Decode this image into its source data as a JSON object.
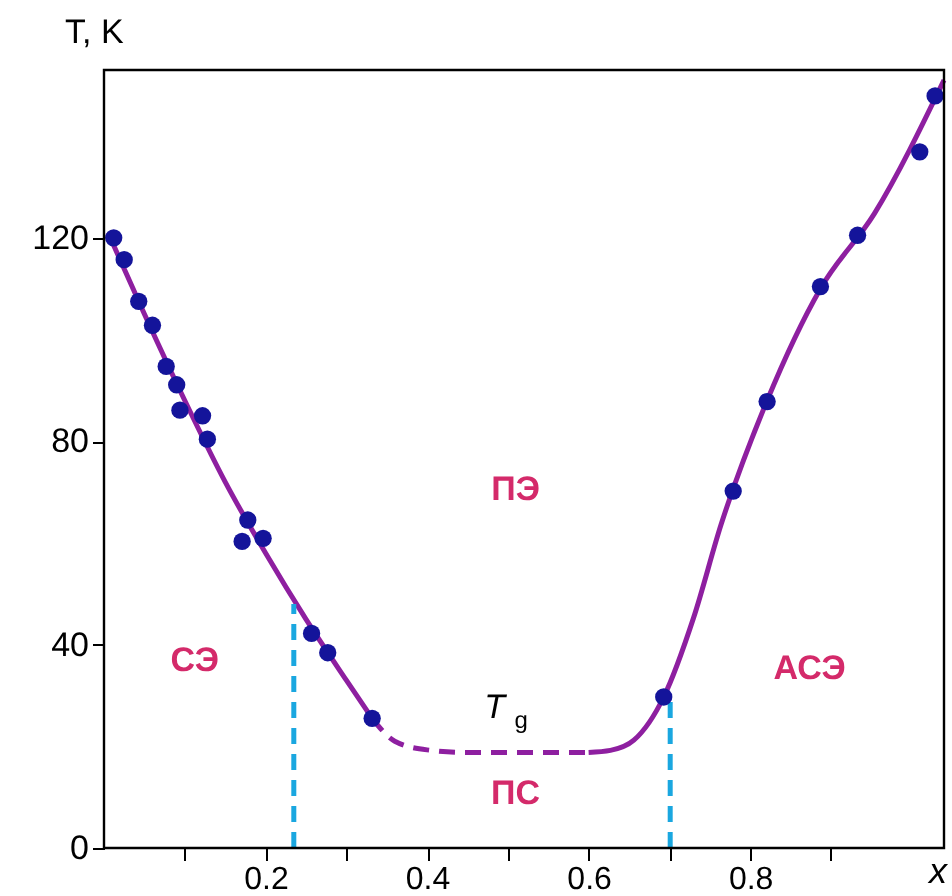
{
  "chart_data": {
    "type": "scatter",
    "xlabel": "x",
    "ylabel": "T, K",
    "xlim": [
      0,
      1.04
    ],
    "ylim": [
      0,
      153
    ],
    "xticks": [
      {
        "value": 0.1,
        "label": null
      },
      0.2,
      {
        "value": 0.3,
        "label": null
      },
      0.4,
      {
        "value": 0.5,
        "label": null
      },
      0.6,
      {
        "value": 0.7,
        "label": null
      },
      0.8,
      {
        "value": 0.9,
        "label": null
      }
    ],
    "yticks": [
      0,
      40,
      80,
      120
    ],
    "grid": false,
    "series": [
      {
        "type": "line",
        "color": "#8e1fa0",
        "line_style": "solid",
        "marker": "none",
        "x": [
          0.005,
          0.05,
          0.1,
          0.15,
          0.2,
          0.25,
          0.3,
          0.332
        ],
        "values": [
          121,
          105,
          88,
          72,
          58,
          45,
          33,
          25.5
        ]
      },
      {
        "type": "line",
        "color": "#8e1fa0",
        "line_style": "dashed",
        "marker": "none",
        "x": [
          0.332,
          0.36,
          0.4,
          0.45,
          0.5,
          0.55,
          0.6
        ],
        "values": [
          25.5,
          21,
          19.3,
          18.8,
          18.8,
          18.8,
          18.8
        ]
      },
      {
        "type": "line",
        "color": "#8e1fa0",
        "line_style": "solid",
        "marker": "none",
        "x": [
          0.6,
          0.627,
          0.656,
          0.693,
          0.73,
          0.764,
          0.821,
          0.887,
          0.954,
          1.04
        ],
        "values": [
          18.8,
          19.2,
          21.2,
          29.7,
          45.3,
          63.6,
          88,
          110,
          124.8,
          151
        ]
      },
      {
        "type": "line",
        "color": "#1aa7e0",
        "line_style": "dashed",
        "marker": "none",
        "x": [
          0.235,
          0.235
        ],
        "values": [
          0,
          48
        ]
      },
      {
        "type": "line",
        "color": "#1aa7e0",
        "line_style": "dashed",
        "marker": "none",
        "x": [
          0.701,
          0.701
        ],
        "values": [
          0,
          29.7
        ]
      },
      {
        "color": "#14149a",
        "marker": "circle",
        "x": [
          0.012,
          0.025,
          0.043,
          0.06,
          0.077,
          0.09,
          0.094,
          0.122,
          0.128,
          0.178,
          0.171,
          0.197,
          0.257,
          0.277,
          0.332,
          0.693,
          0.779,
          0.821,
          0.887,
          0.933,
          1.01,
          1.029
        ],
        "values": [
          120,
          115.7,
          107.5,
          102.8,
          94.7,
          91.1,
          86.1,
          85,
          80.4,
          64.5,
          60.3,
          60.9,
          42.2,
          38.4,
          25.5,
          29.7,
          70.2,
          87.8,
          110.4,
          120.5,
          136.9,
          147.9
        ]
      }
    ],
    "annotations": [
      "ПЭ",
      "СЭ",
      "ПС",
      "АСЭ",
      "T$_{g}$"
    ]
  }
}
